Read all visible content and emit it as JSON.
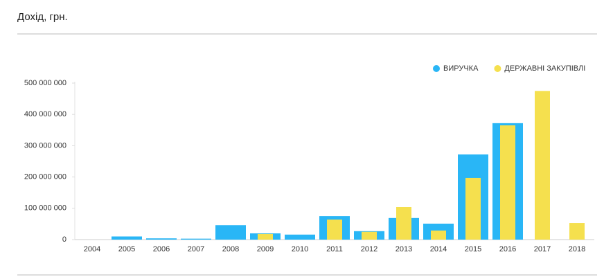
{
  "chart_data": {
    "type": "bar",
    "title": "Дохід, грн.",
    "categories": [
      "2004",
      "2005",
      "2006",
      "2007",
      "2008",
      "2009",
      "2010",
      "2011",
      "2012",
      "2013",
      "2014",
      "2015",
      "2016",
      "2017",
      "2018"
    ],
    "series": [
      {
        "name": "ВИРУЧКА",
        "color": "#29b6f6",
        "values": [
          0,
          10000000,
          4000000,
          3000000,
          46000000,
          20000000,
          16000000,
          75000000,
          27000000,
          69000000,
          51000000,
          272000000,
          372000000,
          null,
          null
        ]
      },
      {
        "name": "ДЕРЖАВНІ ЗАКУПІВЛІ",
        "color": "#f5e04e",
        "values": [
          null,
          null,
          null,
          null,
          null,
          18000000,
          null,
          64000000,
          25000000,
          104000000,
          29000000,
          197000000,
          365000000,
          475000000,
          53000000
        ]
      }
    ],
    "ylim": [
      0,
      500000000
    ],
    "yticks": [
      0,
      {
        "value": 100000000,
        "label": "100 000 000"
      },
      {
        "value": 200000000,
        "label": "200 000 000"
      },
      {
        "value": 300000000,
        "label": "300 000 000"
      },
      {
        "value": 400000000,
        "label": "400 000 000"
      },
      {
        "value": 500000000,
        "label": "500 000 000"
      }
    ],
    "grid": false,
    "legend": "top-right"
  }
}
